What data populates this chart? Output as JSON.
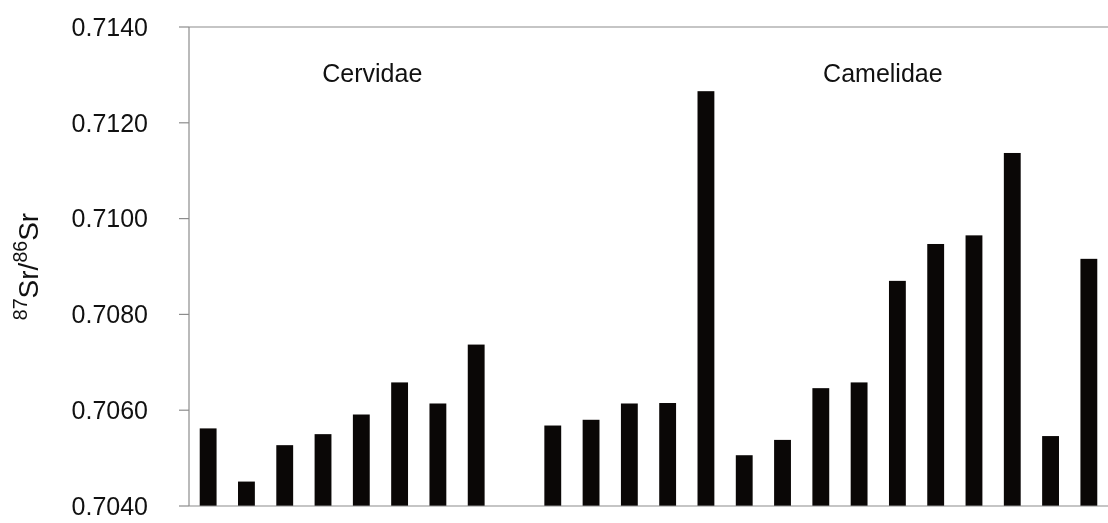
{
  "chart_data": {
    "type": "bar",
    "ylabel": "$^{87}$Sr/$^{86}$Sr",
    "categories": [
      null,
      null,
      null,
      null,
      null,
      null,
      null,
      null,
      null,
      null,
      null,
      null,
      null,
      null,
      null,
      null,
      null,
      null,
      null,
      null,
      null,
      null,
      null,
      null
    ],
    "values": [
      0.70562,
      0.70451,
      0.70527,
      0.7055,
      0.70591,
      0.70658,
      0.70614,
      0.70737,
      null,
      0.70568,
      0.7058,
      0.70614,
      0.70615,
      0.71266,
      0.70506,
      0.70538,
      0.70646,
      0.70658,
      0.7087,
      0.70947,
      0.70965,
      0.71137,
      0.70546,
      0.70916
    ],
    "color": "#0a0706",
    "ylim": [
      0.704,
      0.714
    ],
    "yticks": [
      {
        "value": 0.704,
        "label": "0.7040"
      },
      {
        "value": 0.706,
        "label": "0.7060"
      },
      {
        "value": 0.708,
        "label": "0.7080"
      },
      {
        "value": 0.71,
        "label": "0.7100"
      },
      {
        "value": 0.712,
        "label": "0.7120"
      },
      {
        "value": 0.714,
        "label": "0.7140"
      }
    ],
    "annotations": [
      "Cervidae",
      "Camelidae"
    ],
    "grid": false
  }
}
